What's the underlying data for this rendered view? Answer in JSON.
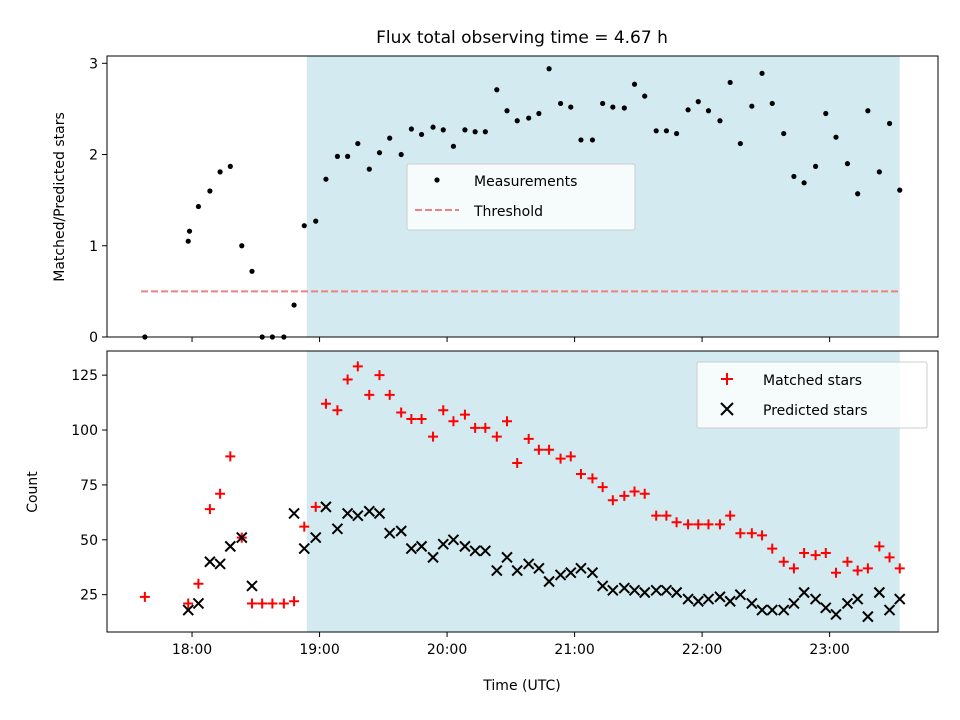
{
  "chart_data": [
    {
      "type": "scatter",
      "title": "Flux total observing time = 4.67 h",
      "xlabel": "",
      "ylabel": "Matched/Predicted stars",
      "xlim": [
        17.333,
        23.85
      ],
      "ylim": [
        0,
        3.08
      ],
      "xticks": [
        {
          "value": 18,
          "label": ""
        },
        {
          "value": 19,
          "label": ""
        },
        {
          "value": 20,
          "label": ""
        },
        {
          "value": 21,
          "label": ""
        },
        {
          "value": 22,
          "label": ""
        },
        {
          "value": 23,
          "label": ""
        }
      ],
      "yticks": [
        {
          "value": 0,
          "label": "0"
        },
        {
          "value": 1,
          "label": "1"
        },
        {
          "value": 2,
          "label": "2"
        },
        {
          "value": 3,
          "label": "3"
        }
      ],
      "shaded_region": {
        "x": [
          18.9,
          23.55
        ],
        "color": "#d3ebf0"
      },
      "threshold": {
        "name": "Threshold",
        "value": 0.5,
        "x": [
          17.6,
          23.55
        ],
        "color": "#f08080"
      },
      "legend": {
        "placement": "center",
        "entries": [
          {
            "label": "Measurements"
          },
          {
            "label": "Threshold"
          }
        ]
      },
      "series": [
        {
          "name": "Measurements",
          "color": "#000000",
          "x": [
            17.63,
            17.97,
            17.98,
            18.05,
            18.14,
            18.22,
            18.3,
            18.39,
            18.47,
            18.55,
            18.63,
            18.72,
            18.8,
            18.88,
            18.97,
            19.05,
            19.14,
            19.22,
            19.3,
            19.39,
            19.47,
            19.55,
            19.64,
            19.72,
            19.8,
            19.89,
            19.97,
            20.05,
            20.14,
            20.22,
            20.3,
            20.39,
            20.47,
            20.55,
            20.64,
            20.72,
            20.8,
            20.89,
            20.97,
            21.05,
            21.14,
            21.22,
            21.3,
            21.39,
            21.47,
            21.55,
            21.64,
            21.72,
            21.8,
            21.89,
            21.97,
            22.05,
            22.14,
            22.22,
            22.3,
            22.39,
            22.47,
            22.55,
            22.64,
            22.72,
            22.8,
            22.89,
            22.97,
            23.05,
            23.14,
            23.22,
            23.3,
            23.39,
            23.47,
            23.55
          ],
          "y": [
            0,
            1.05,
            1.16,
            1.43,
            1.6,
            1.81,
            1.87,
            1.0,
            0.72,
            0,
            0,
            0,
            0.35,
            1.22,
            1.27,
            1.73,
            1.98,
            1.98,
            2.12,
            1.84,
            2.02,
            2.18,
            2.0,
            2.28,
            2.22,
            2.3,
            2.27,
            2.09,
            2.27,
            2.25,
            2.25,
            2.71,
            2.48,
            2.37,
            2.4,
            2.45,
            2.94,
            2.56,
            2.52,
            2.16,
            2.16,
            2.56,
            2.52,
            2.51,
            2.77,
            2.64,
            2.26,
            2.26,
            2.23,
            2.49,
            2.58,
            2.48,
            2.37,
            2.79,
            2.12,
            2.53,
            2.89,
            2.56,
            2.23,
            1.76,
            1.69,
            1.87,
            2.45,
            2.19,
            1.9,
            1.57,
            2.48,
            1.81,
            2.34,
            1.61
          ]
        }
      ]
    },
    {
      "type": "scatter",
      "title": "",
      "xlabel": "Time (UTC)",
      "ylabel": "Count",
      "xlim": [
        17.333,
        23.85
      ],
      "ylim": [
        8,
        136
      ],
      "xticks": [
        {
          "value": 18,
          "label": "18:00"
        },
        {
          "value": 19,
          "label": "19:00"
        },
        {
          "value": 20,
          "label": "20:00"
        },
        {
          "value": 21,
          "label": "21:00"
        },
        {
          "value": 22,
          "label": "22:00"
        },
        {
          "value": 23,
          "label": "23:00"
        }
      ],
      "yticks": [
        {
          "value": 25,
          "label": "25"
        },
        {
          "value": 50,
          "label": "50"
        },
        {
          "value": 75,
          "label": "75"
        },
        {
          "value": 100,
          "label": "100"
        },
        {
          "value": 125,
          "label": "125"
        }
      ],
      "shaded_region": {
        "x": [
          18.9,
          23.55
        ],
        "color": "#d3ebf0"
      },
      "legend": {
        "placement": "top-right",
        "entries": [
          {
            "label": "Matched stars"
          },
          {
            "label": "Predicted stars"
          }
        ]
      },
      "series": [
        {
          "name": "Matched stars",
          "marker": "plus",
          "color": "#ff0000",
          "x": [
            17.63,
            17.97,
            18.05,
            18.14,
            18.22,
            18.3,
            18.39,
            18.47,
            18.55,
            18.63,
            18.72,
            18.8,
            18.88,
            18.97,
            19.05,
            19.14,
            19.22,
            19.3,
            19.39,
            19.47,
            19.55,
            19.64,
            19.72,
            19.8,
            19.89,
            19.97,
            20.05,
            20.14,
            20.22,
            20.3,
            20.39,
            20.47,
            20.55,
            20.64,
            20.72,
            20.8,
            20.89,
            20.97,
            21.05,
            21.14,
            21.22,
            21.3,
            21.39,
            21.47,
            21.55,
            21.64,
            21.72,
            21.8,
            21.89,
            21.97,
            22.05,
            22.14,
            22.22,
            22.3,
            22.39,
            22.47,
            22.55,
            22.64,
            22.72,
            22.8,
            22.89,
            22.97,
            23.05,
            23.14,
            23.22,
            23.3,
            23.39,
            23.47,
            23.55
          ],
          "y": [
            24,
            21,
            30,
            64,
            71,
            88,
            51,
            21,
            21,
            21,
            21,
            22,
            56,
            65,
            112,
            109,
            123,
            129,
            116,
            125,
            116,
            108,
            105,
            105,
            97,
            109,
            104,
            107,
            101,
            101,
            97,
            104,
            85,
            96,
            91,
            91,
            87,
            88,
            80,
            78,
            74,
            68,
            70,
            72,
            71,
            61,
            61,
            58,
            57,
            57,
            57,
            57,
            61,
            53,
            53,
            52,
            46,
            40,
            37,
            44,
            43,
            44,
            35,
            40,
            36,
            37,
            47,
            42,
            37
          ]
        },
        {
          "name": "Predicted stars",
          "marker": "x",
          "color": "#000000",
          "x": [
            17.97,
            18.05,
            18.14,
            18.22,
            18.3,
            18.39,
            18.47,
            18.8,
            18.88,
            18.97,
            19.05,
            19.14,
            19.22,
            19.3,
            19.39,
            19.47,
            19.55,
            19.64,
            19.72,
            19.8,
            19.89,
            19.97,
            20.05,
            20.14,
            20.22,
            20.3,
            20.39,
            20.47,
            20.55,
            20.64,
            20.72,
            20.8,
            20.89,
            20.97,
            21.05,
            21.14,
            21.22,
            21.3,
            21.39,
            21.47,
            21.55,
            21.64,
            21.72,
            21.8,
            21.89,
            21.97,
            22.05,
            22.14,
            22.22,
            22.3,
            22.39,
            22.47,
            22.55,
            22.64,
            22.72,
            22.8,
            22.89,
            22.97,
            23.05,
            23.14,
            23.22,
            23.3,
            23.39,
            23.47,
            23.55
          ],
          "y": [
            18,
            21,
            40,
            39,
            47,
            51,
            29,
            62,
            46,
            51,
            65,
            55,
            62,
            61,
            63,
            62,
            53,
            54,
            46,
            47,
            42,
            48,
            50,
            47,
            45,
            45,
            36,
            42,
            36,
            39,
            37,
            31,
            34,
            35,
            37,
            35,
            29,
            27,
            28,
            27,
            26,
            27,
            27,
            26,
            23,
            22,
            23,
            24,
            22,
            25,
            21,
            18,
            18,
            18,
            21,
            26,
            23,
            19,
            16,
            21,
            23,
            15,
            26,
            18,
            23
          ]
        }
      ]
    }
  ]
}
